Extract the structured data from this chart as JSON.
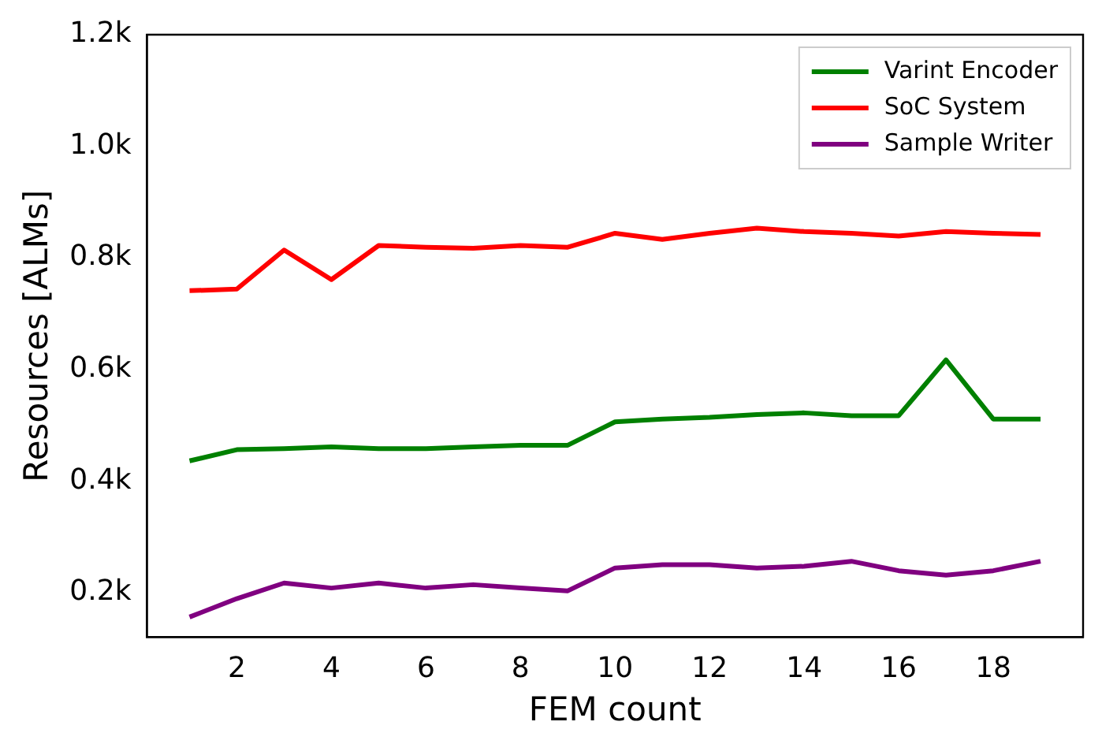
{
  "chart_data": {
    "type": "line",
    "xlabel": "FEM count",
    "ylabel": "Resources [ALMs]",
    "x": [
      1,
      2,
      3,
      4,
      5,
      6,
      7,
      8,
      9,
      10,
      11,
      12,
      13,
      14,
      15,
      16,
      17,
      18,
      19
    ],
    "series": [
      {
        "name": "Varint Encoder",
        "color": "#008000",
        "values": [
          436,
          456,
          458,
          461,
          458,
          458,
          461,
          464,
          464,
          506,
          511,
          514,
          519,
          522,
          517,
          517,
          617,
          511,
          511
        ]
      },
      {
        "name": "SoC System",
        "color": "#ff0000",
        "values": [
          741,
          744,
          814,
          761,
          822,
          819,
          817,
          822,
          819,
          844,
          833,
          844,
          853,
          847,
          844,
          839,
          847,
          844,
          842
        ]
      },
      {
        "name": "Sample Writer",
        "color": "#800080",
        "values": [
          156,
          189,
          217,
          208,
          217,
          208,
          214,
          208,
          203,
          244,
          250,
          250,
          244,
          247,
          256,
          239,
          231,
          239,
          256
        ]
      }
    ],
    "xlim": [
      0.1,
      19.9
    ],
    "xticks": [
      2,
      4,
      6,
      8,
      10,
      12,
      14,
      16,
      18
    ],
    "ylim": [
      120,
      1200
    ],
    "yticks": [
      {
        "value": 200,
        "label": "0.2k"
      },
      {
        "value": 400,
        "label": "0.4k"
      },
      {
        "value": 600,
        "label": "0.6k"
      },
      {
        "value": 800,
        "label": "0.8k"
      },
      {
        "value": 1000,
        "label": "1.0k"
      },
      {
        "value": 1200,
        "label": "1.2k"
      }
    ],
    "legend": "top right",
    "grid": false,
    "marker": "none",
    "line_style": "solid"
  }
}
